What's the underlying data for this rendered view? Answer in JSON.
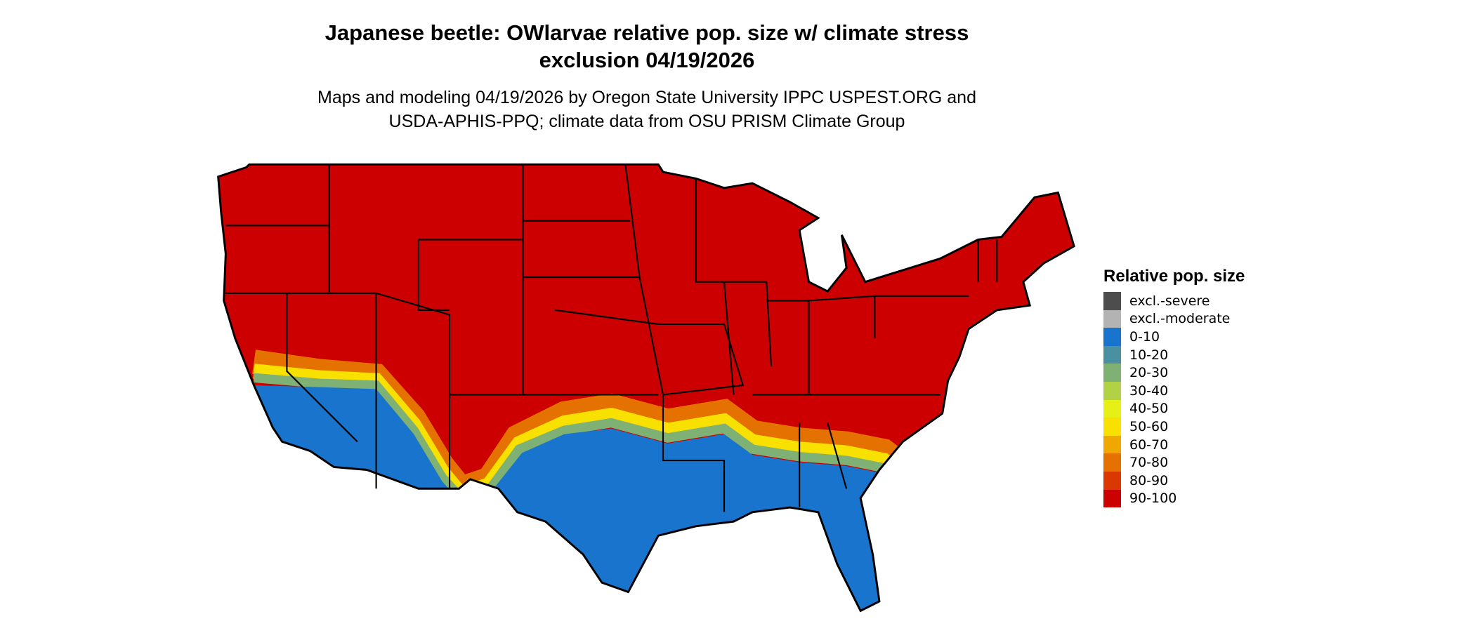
{
  "title_line1": "Japanese beetle: OWlarvae relative pop. size w/ climate stress",
  "title_line2": "exclusion 04/19/2026",
  "subtitle_line1": "Maps and modeling 04/19/2026 by Oregon State University IPPC USPEST.ORG and",
  "subtitle_line2": "USDA-APHIS-PPQ; climate data from OSU PRISM Climate Group",
  "legend": {
    "title": "Relative pop. size",
    "items": [
      {
        "label": "excl.-severe",
        "color": "#4d4d4d"
      },
      {
        "label": "excl.-moderate",
        "color": "#b3b3b3"
      },
      {
        "label": "0-10",
        "color": "#1874cd"
      },
      {
        "label": "10-20",
        "color": "#4a90a0"
      },
      {
        "label": "20-30",
        "color": "#7fb175"
      },
      {
        "label": "30-40",
        "color": "#b3d145"
      },
      {
        "label": "40-50",
        "color": "#e6f016"
      },
      {
        "label": "50-60",
        "color": "#f8e000"
      },
      {
        "label": "60-70",
        "color": "#f0a800"
      },
      {
        "label": "70-80",
        "color": "#e57200"
      },
      {
        "label": "80-90",
        "color": "#db3700"
      },
      {
        "label": "90-100",
        "color": "#cc0000"
      }
    ]
  },
  "map": {
    "region": "Contiguous United States",
    "dominant_class": "90-100",
    "southern_class": "0-10"
  }
}
